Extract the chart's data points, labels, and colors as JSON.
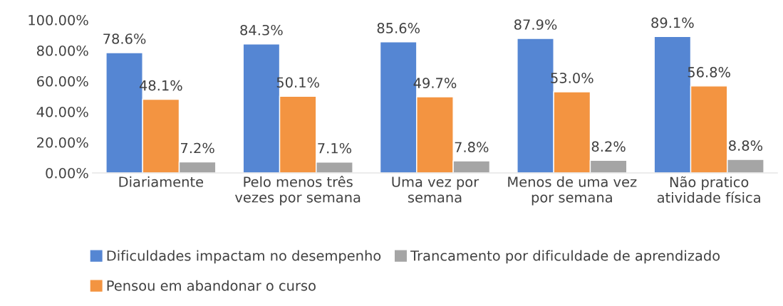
{
  "chart_data": {
    "type": "bar",
    "categories": [
      "Diariamente",
      "Pelo menos três\nvezes por semana",
      "Uma vez por\nsemana",
      "Menos de uma vez\npor semana",
      "Não pratico\natividade física"
    ],
    "series": [
      {
        "name": "Dificuldades impactam no desempenho",
        "color": "#5586d3",
        "values": [
          78.6,
          84.3,
          85.6,
          87.9,
          89.1
        ],
        "value_labels": [
          "78.6%",
          "84.3%",
          "85.6%",
          "87.9%",
          "89.1%"
        ]
      },
      {
        "name": "Pensou em abandonar o curso",
        "color": "#f39441",
        "values": [
          48.1,
          50.1,
          49.7,
          53.0,
          56.8
        ],
        "value_labels": [
          "48.1%",
          "50.1%",
          "49.7%",
          "53.0%",
          "56.8%"
        ]
      },
      {
        "name": "Trancamento por dificuldade de aprendizado",
        "color": "#a5a5a5",
        "values": [
          7.2,
          7.1,
          7.8,
          8.2,
          8.8
        ],
        "value_labels": [
          "7.2%",
          "7.1%",
          "7.8%",
          "8.2%",
          "8.8%"
        ]
      }
    ],
    "ylim": [
      0,
      100
    ],
    "yticks": [
      {
        "value": 0,
        "label": "0.00%"
      },
      {
        "value": 20,
        "label": "20.00%"
      },
      {
        "value": 40,
        "label": "40.00%"
      },
      {
        "value": 60,
        "label": "60.00%"
      },
      {
        "value": 80,
        "label": "80.00%"
      },
      {
        "value": 100,
        "label": "100.00%"
      }
    ],
    "grid": false,
    "legend": "bottom"
  }
}
